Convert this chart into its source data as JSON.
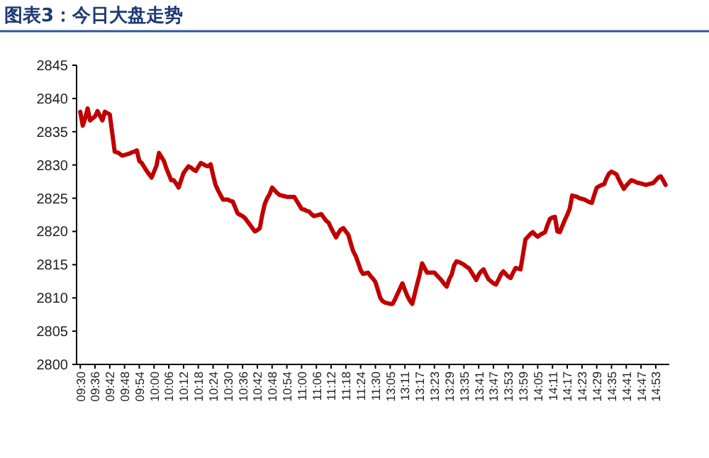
{
  "chart_data": {
    "type": "line",
    "title": "图表3：今日大盘走势",
    "color": "#c00000",
    "line_style": "solid",
    "marker": "none",
    "grid": false,
    "categories": [
      "09:30",
      null,
      null,
      null,
      null,
      null,
      "09:36",
      null,
      null,
      null,
      null,
      null,
      "09:42",
      null,
      null,
      null,
      null,
      null,
      "09:48",
      null,
      null,
      null,
      null,
      null,
      "09:54",
      null,
      null,
      null,
      null,
      null,
      "10:00",
      null,
      null,
      null,
      null,
      null,
      "10:06",
      null,
      null,
      null,
      null,
      null,
      "10:12",
      null,
      null,
      null,
      null,
      null,
      "10:18",
      null,
      null,
      null,
      null,
      null,
      "10:24",
      null,
      null,
      null,
      null,
      null,
      "10:30",
      null,
      null,
      null,
      null,
      null,
      "10:36",
      null,
      null,
      null,
      null,
      null,
      "10:42",
      null,
      null,
      null,
      null,
      null,
      "10:48",
      null,
      null,
      null,
      null,
      null,
      "10:54",
      null,
      null,
      null,
      null,
      null,
      "11:00",
      null,
      null,
      null,
      null,
      null,
      "11:06",
      null,
      null,
      null,
      null,
      null,
      "11:12",
      null,
      null,
      null,
      null,
      null,
      "11:18",
      null,
      null,
      null,
      null,
      null,
      "11:24",
      null,
      null,
      null,
      null,
      null,
      "11:30",
      null,
      null,
      null,
      null,
      null,
      "13:05",
      null,
      null,
      null,
      null,
      null,
      "13:11",
      null,
      null,
      null,
      null,
      null,
      "13:17",
      null,
      null,
      null,
      null,
      null,
      "13:23",
      null,
      null,
      null,
      null,
      null,
      "13:29",
      null,
      null,
      null,
      null,
      null,
      "13:35",
      null,
      null,
      null,
      null,
      null,
      "13:41",
      null,
      null,
      null,
      null,
      null,
      "13:47",
      null,
      null,
      null,
      null,
      null,
      "13:53",
      null,
      null,
      null,
      null,
      null,
      "13:59",
      null,
      null,
      null,
      null,
      null,
      "14:05",
      null,
      null,
      null,
      null,
      null,
      "14:11",
      null,
      null,
      null,
      null,
      null,
      "14:17",
      null,
      null,
      null,
      null,
      null,
      "14:23",
      null,
      null,
      null,
      null,
      null,
      "14:29",
      null,
      null,
      null,
      null,
      null,
      "14:35",
      null,
      null,
      null,
      null,
      null,
      "14:41",
      null,
      null,
      null,
      null,
      null,
      "14:47",
      null,
      null,
      null,
      null,
      null,
      "14:53",
      null,
      null,
      null,
      null,
      null
    ],
    "values": [
      2838,
      2835.9,
      2837,
      2838.5,
      2836.7,
      2837,
      2837.3,
      2838.1,
      2837.4,
      2836.7,
      2838,
      2837.8,
      2837.6,
      2834.8,
      2832,
      2831.9,
      2831.7,
      2831.4,
      2831.5,
      2831.6,
      2831.7,
      2831.9,
      2832,
      2832.2,
      2830.6,
      2830.3,
      2829.7,
      2829.1,
      2828.6,
      2828.1,
      2829,
      2829.9,
      2831.8,
      2831.2,
      2830.6,
      2829.5,
      2828.6,
      2827.7,
      2827.7,
      2827.2,
      2826.6,
      2827.7,
      2828.8,
      2829.3,
      2829.8,
      2829.6,
      2829.3,
      2829.1,
      2829.7,
      2830.3,
      2830.1,
      2829.9,
      2829.8,
      2830.1,
      2828.5,
      2827,
      2826.2,
      2825.5,
      2824.8,
      2824.8,
      2824.8,
      2824.6,
      2824.5,
      2823.6,
      2822.7,
      2822.5,
      2822.3,
      2822,
      2821.5,
      2821,
      2820.5,
      2820,
      2820.2,
      2820.5,
      2822.5,
      2824.1,
      2825,
      2825.6,
      2826.6,
      2826.2,
      2825.8,
      2825.5,
      2825.4,
      2825.3,
      2825.2,
      2825.2,
      2825.2,
      2825.2,
      2824.6,
      2824,
      2823.4,
      2823.3,
      2823.1,
      2823,
      2822.6,
      2822.3,
      2822.4,
      2822.5,
      2822.6,
      2822.1,
      2821.6,
      2821.3,
      2820.5,
      2819.8,
      2819.1,
      2819.8,
      2820.3,
      2820.5,
      2820,
      2819.5,
      2818.2,
      2817,
      2816.3,
      2815.3,
      2814.2,
      2813.6,
      2813.7,
      2813.8,
      2813.3,
      2812.9,
      2812.4,
      2811.2,
      2810,
      2809.5,
      2809.3,
      2809.2,
      2809.1,
      2809.1,
      2809.8,
      2810.6,
      2811.4,
      2812.2,
      2811.2,
      2810.3,
      2809.6,
      2809.1,
      2810.6,
      2812.1,
      2813.5,
      2815.2,
      2814.5,
      2813.8,
      2813.8,
      2813.8,
      2813.8,
      2813.4,
      2813,
      2812.6,
      2812.1,
      2811.7,
      2812.8,
      2813.5,
      2814.9,
      2815.5,
      2815.4,
      2815.2,
      2815,
      2814.7,
      2814.5,
      2813.9,
      2813.3,
      2812.7,
      2813.5,
      2814,
      2814.3,
      2813.5,
      2812.8,
      2812.5,
      2812.2,
      2812,
      2812.7,
      2813.5,
      2814,
      2813.6,
      2813.2,
      2813,
      2813.8,
      2814.5,
      2814.4,
      2814.3,
      2816.5,
      2818.8,
      2819.2,
      2819.6,
      2819.9,
      2819.5,
      2819.2,
      2819.5,
      2819.7,
      2819.9,
      2821,
      2821.9,
      2822.1,
      2822.2,
      2820,
      2819.9,
      2820.8,
      2821.7,
      2822.5,
      2823.4,
      2825.4,
      2825.3,
      2825.2,
      2825,
      2824.9,
      2824.8,
      2824.6,
      2824.4,
      2824.3,
      2825.5,
      2826.6,
      2826.8,
      2827,
      2827.1,
      2828,
      2828.7,
      2829,
      2828.8,
      2828.6,
      2827.8,
      2827.1,
      2826.4,
      2826.9,
      2827.3,
      2827.7,
      2827.6,
      2827.4,
      2827.3,
      2827.2,
      2827.1,
      2827,
      2827.1,
      2827.2,
      2827.3,
      2827.7,
      2828.1,
      2828.3,
      2827.7,
      2827,
      null
    ],
    "ylim": [
      2800,
      2845
    ],
    "yticks": [
      2800,
      2805,
      2810,
      2815,
      2820,
      2825,
      2830,
      2835,
      2840,
      2845
    ]
  }
}
